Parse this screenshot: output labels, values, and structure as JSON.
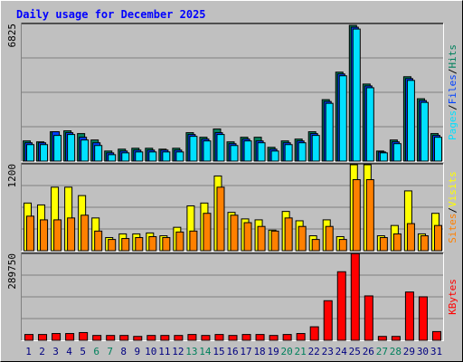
{
  "chart_data": [
    {
      "type": "bar",
      "title": "Daily usage for December 2025",
      "categories": [
        "1",
        "2",
        "3",
        "4",
        "5",
        "6",
        "7",
        "8",
        "9",
        "10",
        "11",
        "12",
        "13",
        "14",
        "15",
        "16",
        "17",
        "18",
        "19",
        "20",
        "21",
        "22",
        "23",
        "24",
        "25",
        "26",
        "27",
        "28",
        "29",
        "30",
        "31"
      ],
      "category_colors": [
        "#000080",
        "#000080",
        "#000080",
        "#000080",
        "#000080",
        "#00805c",
        "#00805c",
        "#000080",
        "#000080",
        "#000080",
        "#000080",
        "#000080",
        "#00805c",
        "#00805c",
        "#000080",
        "#000080",
        "#000080",
        "#000080",
        "#000080",
        "#00805c",
        "#00805c",
        "#000080",
        "#000080",
        "#000080",
        "#000080",
        "#000080",
        "#00805c",
        "#00805c",
        "#000080",
        "#000080",
        "#000080"
      ],
      "legend_separator": "/",
      "ylim": [
        0,
        6825
      ],
      "yticks": [
        6825
      ],
      "series": [
        {
          "name": "Hits",
          "color": "#00805c",
          "values": [
            1001,
            955,
            1456,
            1502,
            1365,
            1047,
            500,
            592,
            637,
            637,
            592,
            637,
            1410,
            1183,
            1593,
            955,
            1183,
            1183,
            683,
            1001,
            1092,
            1456,
            3049,
            4414,
            6734,
            3822,
            500,
            1047,
            4186,
            3094,
            1365
          ]
        },
        {
          "name": "Files",
          "color": "#0040ff",
          "values": [
            910,
            910,
            1456,
            1410,
            1183,
            910,
            410,
            500,
            546,
            546,
            546,
            546,
            1320,
            1092,
            1410,
            865,
            1092,
            1001,
            592,
            910,
            1001,
            1365,
            2958,
            4323,
            6643,
            3731,
            455,
            955,
            4095,
            3003,
            1274
          ]
        },
        {
          "name": "Pages",
          "color": "#00e0ff",
          "values": [
            819,
            819,
            1274,
            1320,
            1047,
            774,
            320,
            410,
            455,
            455,
            455,
            455,
            1229,
            1001,
            1320,
            774,
            1001,
            910,
            500,
            819,
            910,
            1274,
            2867,
            4232,
            6552,
            3640,
            410,
            865,
            4004,
            2912,
            1183
          ]
        }
      ]
    },
    {
      "type": "bar",
      "ylim": [
        0,
        1200
      ],
      "yticks": [
        1200
      ],
      "series": [
        {
          "name": "Visits",
          "color": "#ffff00",
          "values": [
            658,
            632,
            877,
            877,
            761,
            452,
            181,
            232,
            232,
            245,
            206,
            323,
            619,
            658,
            1032,
            529,
            439,
            426,
            284,
            542,
            413,
            206,
            426,
            194,
            1187,
            1187,
            206,
            348,
            826,
            232,
            516
          ]
        },
        {
          "name": "Sites",
          "color": "#ff8000",
          "values": [
            477,
            426,
            426,
            452,
            490,
            271,
            155,
            168,
            181,
            194,
            181,
            258,
            271,
            516,
            877,
            490,
            387,
            335,
            271,
            452,
            335,
            155,
            335,
            155,
            981,
            981,
            181,
            232,
            374,
            206,
            348
          ]
        }
      ]
    },
    {
      "type": "bar",
      "ylim": [
        0,
        289750
      ],
      "yticks": [
        289750
      ],
      "series": [
        {
          "name": "KBytes",
          "color": "#ff0000",
          "values": [
            19300,
            19300,
            22500,
            22500,
            25750,
            16100,
            16100,
            16100,
            12900,
            16100,
            16100,
            16100,
            19300,
            16100,
            19300,
            16100,
            19300,
            19300,
            16100,
            19300,
            22500,
            45000,
            132000,
            228600,
            289000,
            148000,
            12900,
            12900,
            161000,
            145000,
            29000
          ]
        }
      ]
    }
  ]
}
